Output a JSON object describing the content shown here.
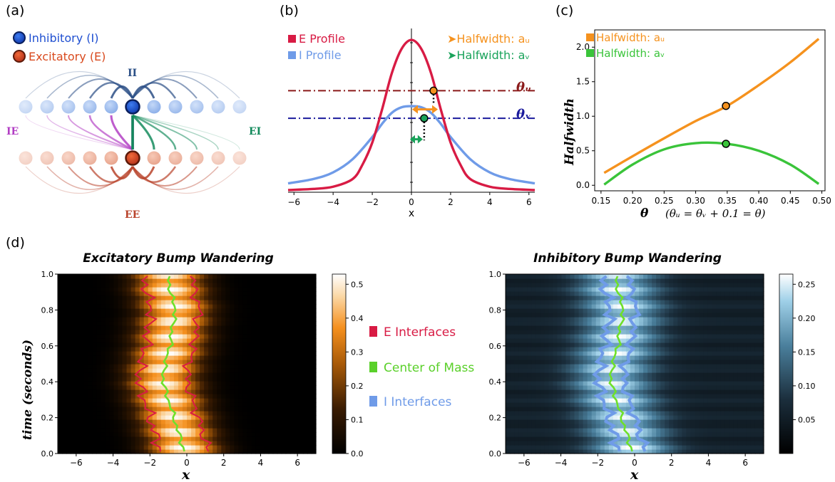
{
  "panel_labels": {
    "a": "(a)",
    "b": "(b)",
    "c": "(c)",
    "d": "(d)"
  },
  "panel_a": {
    "legend": [
      "Inhibitory (I)",
      "Excitatory (E)"
    ],
    "labels": {
      "ii": "II",
      "ie": "IE",
      "ei": "EI",
      "ee": "EE"
    },
    "colors": {
      "inhibitory": "#1f4fd1",
      "excitatory": "#d94a1e",
      "ii": "#2b4f86",
      "ie": "#b23ec4",
      "ei": "#138a5c",
      "ee": "#b9442c"
    }
  },
  "panel_b_legend": {
    "e_profile": "E Profile",
    "i_profile": "I Profile",
    "halfwidth_u": "Halfwidth: aᵤ",
    "halfwidth_v": "Halfwidth: aᵥ",
    "theta_u": "θᵤ",
    "theta_v": "θᵥ"
  },
  "panel_c_ylabel": "Halfwidth",
  "panel_c_xlabel": "θ",
  "panel_c_xnote": "(θᵤ = θᵥ + 0.1 = θ)",
  "panel_c_legend": {
    "u": "Halfwidth: aᵤ",
    "v": "Halfwidth: aᵥ"
  },
  "panel_d": {
    "title_left": "Excitatory Bump Wandering",
    "title_right": "Inhibitory Bump Wandering",
    "ylabel": "time (seconds)",
    "xlabel": "x",
    "legend": [
      "E  Interfaces",
      "Center of Mass",
      "I    Interfaces"
    ]
  },
  "chart_data": [
    {
      "type": "line",
      "panel": "b",
      "xlabel": "x",
      "xlim": [
        -6.3,
        6.3
      ],
      "xticks": [
        -6,
        -4,
        -2,
        0,
        2,
        4,
        6
      ],
      "series": [
        {
          "name": "E Profile",
          "color": "#d81b44",
          "x": [
            -6.3,
            -5,
            -4,
            -3,
            -2.5,
            -2,
            -1.5,
            -1,
            -0.5,
            0,
            0.5,
            1,
            1.5,
            2,
            2.5,
            3,
            4,
            5,
            6.3
          ],
          "y": [
            0.02,
            0.03,
            0.05,
            0.12,
            0.25,
            0.45,
            0.75,
            1.08,
            1.3,
            1.38,
            1.3,
            1.08,
            0.75,
            0.45,
            0.25,
            0.12,
            0.05,
            0.03,
            0.02
          ]
        },
        {
          "name": "I Profile",
          "color": "#6f9be8",
          "x": [
            -6.3,
            -5,
            -4,
            -3,
            -2,
            -1.5,
            -1,
            -0.5,
            0,
            0.5,
            1,
            1.5,
            2,
            3,
            4,
            5,
            6.3
          ],
          "y": [
            0.08,
            0.12,
            0.18,
            0.3,
            0.5,
            0.62,
            0.72,
            0.77,
            0.78,
            0.77,
            0.72,
            0.62,
            0.5,
            0.3,
            0.18,
            0.12,
            0.08
          ]
        }
      ],
      "hlines": [
        {
          "name": "θᵤ",
          "y": 0.92,
          "color": "#8b1a1a"
        },
        {
          "name": "θᵥ",
          "y": 0.67,
          "color": "#1a1a9c"
        }
      ],
      "points": [
        {
          "x": 1.13,
          "y": 0.92
        },
        {
          "x": 0.65,
          "y": 0.67
        }
      ]
    },
    {
      "type": "line",
      "panel": "c",
      "xlim": [
        0.14,
        0.505
      ],
      "ylim": [
        -0.08,
        2.25
      ],
      "xticks": [
        0.15,
        0.2,
        0.25,
        0.3,
        0.35,
        0.4,
        0.45,
        0.5
      ],
      "yticks": [
        0.0,
        0.5,
        1.0,
        1.5,
        2.0
      ],
      "xticklabels": [
        "0.15",
        "0.20",
        "0.25",
        "0.30",
        "0.35",
        "0.40",
        "0.45",
        "0.50"
      ],
      "yticklabels": [
        "0.0",
        "0.5",
        "1.0",
        "1.5",
        "2.0"
      ],
      "series": [
        {
          "name": "Halfwidth: aᵤ",
          "color": "#f5921e",
          "x": [
            0.155,
            0.2,
            0.25,
            0.3,
            0.35,
            0.4,
            0.45,
            0.495
          ],
          "y": [
            0.18,
            0.42,
            0.68,
            0.93,
            1.15,
            1.45,
            1.78,
            2.12
          ]
        },
        {
          "name": "Halfwidth: aᵥ",
          "color": "#3ac43a",
          "x": [
            0.155,
            0.2,
            0.25,
            0.3,
            0.35,
            0.4,
            0.45,
            0.495
          ],
          "y": [
            0.01,
            0.3,
            0.52,
            0.61,
            0.6,
            0.5,
            0.3,
            0.02
          ]
        }
      ],
      "points": [
        {
          "x": 0.348,
          "y": 1.15
        },
        {
          "x": 0.348,
          "y": 0.6
        }
      ]
    },
    {
      "type": "heatmap",
      "panel": "d-left",
      "title": "Excitatory Bump Wandering",
      "xlabel": "x",
      "ylabel": "time (seconds)",
      "xlim": [
        -7,
        7
      ],
      "ylim": [
        0,
        1
      ],
      "xticks": [
        -6,
        -4,
        -2,
        0,
        2,
        4,
        6
      ],
      "yticks": [
        0.0,
        0.2,
        0.4,
        0.6,
        0.8,
        1.0
      ],
      "yticklabels": [
        "0.0",
        "0.2",
        "0.4",
        "0.6",
        "0.8",
        "1.0"
      ],
      "colorbar": {
        "min": 0,
        "max": 0.53,
        "ticks": [
          0.0,
          0.1,
          0.2,
          0.3,
          0.4,
          0.5
        ]
      },
      "center_of_mass": {
        "t": [
          0,
          0.1,
          0.2,
          0.3,
          0.4,
          0.5,
          0.6,
          0.7,
          0.8,
          0.9,
          1.0
        ],
        "x": [
          -0.1,
          -0.4,
          -0.7,
          -1.0,
          -1.3,
          -1.2,
          -0.9,
          -0.8,
          -0.6,
          -0.9,
          -1.0
        ]
      },
      "halfwidth": 1.3
    },
    {
      "type": "heatmap",
      "panel": "d-right",
      "title": "Inhibitory Bump Wandering",
      "xlabel": "x",
      "xlim": [
        -7,
        7
      ],
      "ylim": [
        0,
        1
      ],
      "xticks": [
        -6,
        -4,
        -2,
        0,
        2,
        4,
        6
      ],
      "yticks": [
        0.0,
        0.2,
        0.4,
        0.6,
        0.8,
        1.0
      ],
      "yticklabels": [
        "0.0",
        "0.2",
        "0.4",
        "0.6",
        "0.8",
        "1.0"
      ],
      "colorbar": {
        "min": 0,
        "max": 0.265,
        "ticks": [
          0.05,
          0.1,
          0.15,
          0.2,
          0.25
        ]
      },
      "center_of_mass": {
        "t": [
          0,
          0.1,
          0.2,
          0.3,
          0.4,
          0.5,
          0.6,
          0.7,
          0.8,
          0.9,
          1.0
        ],
        "x": [
          -0.1,
          -0.4,
          -0.7,
          -1.0,
          -1.3,
          -1.2,
          -0.9,
          -0.8,
          -0.6,
          -0.9,
          -1.0
        ]
      },
      "halfwidth": 0.7
    }
  ]
}
